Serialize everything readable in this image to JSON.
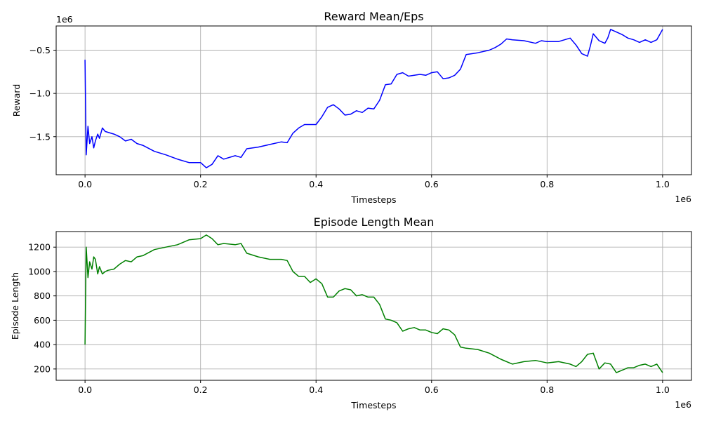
{
  "chart_data": [
    {
      "type": "line",
      "title": "Reward Mean/Eps",
      "xlabel": "Timesteps",
      "ylabel": "Reward",
      "x_offset_label": "1e6",
      "y_offset_label": "1e6",
      "xlim": [
        -0.05,
        1.05
      ],
      "ylim": [
        -1.94,
        -0.22
      ],
      "x_ticks": [
        0.0,
        0.2,
        0.4,
        0.6,
        0.8,
        1.0
      ],
      "x_tick_labels": [
        "0.0",
        "0.2",
        "0.4",
        "0.6",
        "0.8",
        "1.0"
      ],
      "y_ticks": [
        -1.5,
        -1.0,
        -0.5
      ],
      "y_tick_labels": [
        "−1.5",
        "−1.0",
        "−0.5"
      ],
      "grid": true,
      "series": [
        {
          "color": "#0000ff",
          "x": [
            0.0,
            0.002,
            0.005,
            0.008,
            0.012,
            0.015,
            0.018,
            0.022,
            0.025,
            0.03,
            0.035,
            0.04,
            0.05,
            0.06,
            0.07,
            0.08,
            0.09,
            0.1,
            0.12,
            0.14,
            0.16,
            0.18,
            0.2,
            0.21,
            0.22,
            0.23,
            0.24,
            0.26,
            0.27,
            0.28,
            0.3,
            0.32,
            0.34,
            0.35,
            0.36,
            0.37,
            0.38,
            0.4,
            0.41,
            0.42,
            0.43,
            0.44,
            0.45,
            0.46,
            0.47,
            0.48,
            0.49,
            0.5,
            0.51,
            0.52,
            0.53,
            0.54,
            0.55,
            0.56,
            0.57,
            0.58,
            0.59,
            0.6,
            0.61,
            0.62,
            0.63,
            0.64,
            0.65,
            0.66,
            0.68,
            0.7,
            0.71,
            0.72,
            0.73,
            0.74,
            0.76,
            0.78,
            0.79,
            0.8,
            0.82,
            0.84,
            0.85,
            0.86,
            0.87,
            0.875,
            0.88,
            0.89,
            0.9,
            0.905,
            0.91,
            0.92,
            0.93,
            0.94,
            0.95,
            0.96,
            0.97,
            0.98,
            0.99,
            1.0
          ],
          "y": [
            -0.61,
            -1.71,
            -1.38,
            -1.58,
            -1.5,
            -1.63,
            -1.55,
            -1.47,
            -1.52,
            -1.4,
            -1.44,
            -1.45,
            -1.47,
            -1.5,
            -1.55,
            -1.53,
            -1.58,
            -1.6,
            -1.67,
            -1.71,
            -1.76,
            -1.8,
            -1.8,
            -1.86,
            -1.82,
            -1.72,
            -1.76,
            -1.72,
            -1.74,
            -1.64,
            -1.62,
            -1.59,
            -1.56,
            -1.57,
            -1.46,
            -1.4,
            -1.36,
            -1.36,
            -1.27,
            -1.16,
            -1.13,
            -1.18,
            -1.25,
            -1.24,
            -1.2,
            -1.22,
            -1.17,
            -1.18,
            -1.08,
            -0.9,
            -0.89,
            -0.78,
            -0.76,
            -0.8,
            -0.79,
            -0.78,
            -0.79,
            -0.76,
            -0.75,
            -0.83,
            -0.82,
            -0.79,
            -0.72,
            -0.55,
            -0.53,
            -0.5,
            -0.47,
            -0.43,
            -0.37,
            -0.38,
            -0.39,
            -0.42,
            -0.39,
            -0.4,
            -0.4,
            -0.36,
            -0.44,
            -0.54,
            -0.57,
            -0.45,
            -0.31,
            -0.39,
            -0.42,
            -0.36,
            -0.26,
            -0.29,
            -0.32,
            -0.36,
            -0.38,
            -0.41,
            -0.38,
            -0.41,
            -0.38,
            -0.26
          ]
        }
      ]
    },
    {
      "type": "line",
      "title": "Episode Length Mean",
      "xlabel": "Timesteps",
      "ylabel": "Episode Length",
      "x_offset_label": "1e6",
      "xlim": [
        -0.05,
        1.05
      ],
      "ylim": [
        107,
        1328
      ],
      "x_ticks": [
        0.0,
        0.2,
        0.4,
        0.6,
        0.8,
        1.0
      ],
      "x_tick_labels": [
        "0.0",
        "0.2",
        "0.4",
        "0.6",
        "0.8",
        "1.0"
      ],
      "y_ticks": [
        200,
        400,
        600,
        800,
        1000,
        1200
      ],
      "y_tick_labels": [
        "200",
        "400",
        "600",
        "800",
        "1000",
        "1200"
      ],
      "grid": true,
      "series": [
        {
          "color": "#008000",
          "x": [
            0.0,
            0.002,
            0.005,
            0.008,
            0.012,
            0.015,
            0.018,
            0.022,
            0.025,
            0.03,
            0.035,
            0.04,
            0.05,
            0.06,
            0.07,
            0.08,
            0.09,
            0.1,
            0.12,
            0.14,
            0.16,
            0.18,
            0.2,
            0.21,
            0.22,
            0.23,
            0.24,
            0.26,
            0.27,
            0.28,
            0.3,
            0.32,
            0.34,
            0.35,
            0.36,
            0.37,
            0.38,
            0.39,
            0.4,
            0.41,
            0.42,
            0.43,
            0.44,
            0.45,
            0.46,
            0.47,
            0.48,
            0.49,
            0.5,
            0.51,
            0.52,
            0.53,
            0.54,
            0.55,
            0.56,
            0.57,
            0.58,
            0.59,
            0.6,
            0.61,
            0.62,
            0.63,
            0.64,
            0.65,
            0.66,
            0.68,
            0.7,
            0.72,
            0.74,
            0.76,
            0.78,
            0.8,
            0.82,
            0.84,
            0.85,
            0.86,
            0.87,
            0.88,
            0.89,
            0.9,
            0.91,
            0.92,
            0.93,
            0.94,
            0.95,
            0.96,
            0.97,
            0.98,
            0.99,
            1.0
          ],
          "y": [
            400,
            1200,
            950,
            1080,
            1020,
            1120,
            1100,
            980,
            1040,
            980,
            1000,
            1010,
            1020,
            1060,
            1090,
            1080,
            1120,
            1130,
            1180,
            1200,
            1220,
            1260,
            1270,
            1300,
            1270,
            1220,
            1230,
            1220,
            1230,
            1150,
            1120,
            1100,
            1100,
            1090,
            1000,
            960,
            960,
            910,
            940,
            900,
            790,
            790,
            840,
            860,
            850,
            800,
            810,
            790,
            790,
            730,
            610,
            600,
            580,
            510,
            530,
            540,
            520,
            520,
            500,
            490,
            530,
            520,
            480,
            380,
            370,
            360,
            330,
            280,
            240,
            260,
            270,
            250,
            260,
            240,
            220,
            260,
            320,
            330,
            200,
            250,
            240,
            170,
            190,
            210,
            210,
            230,
            240,
            220,
            240,
            170
          ]
        }
      ]
    }
  ]
}
